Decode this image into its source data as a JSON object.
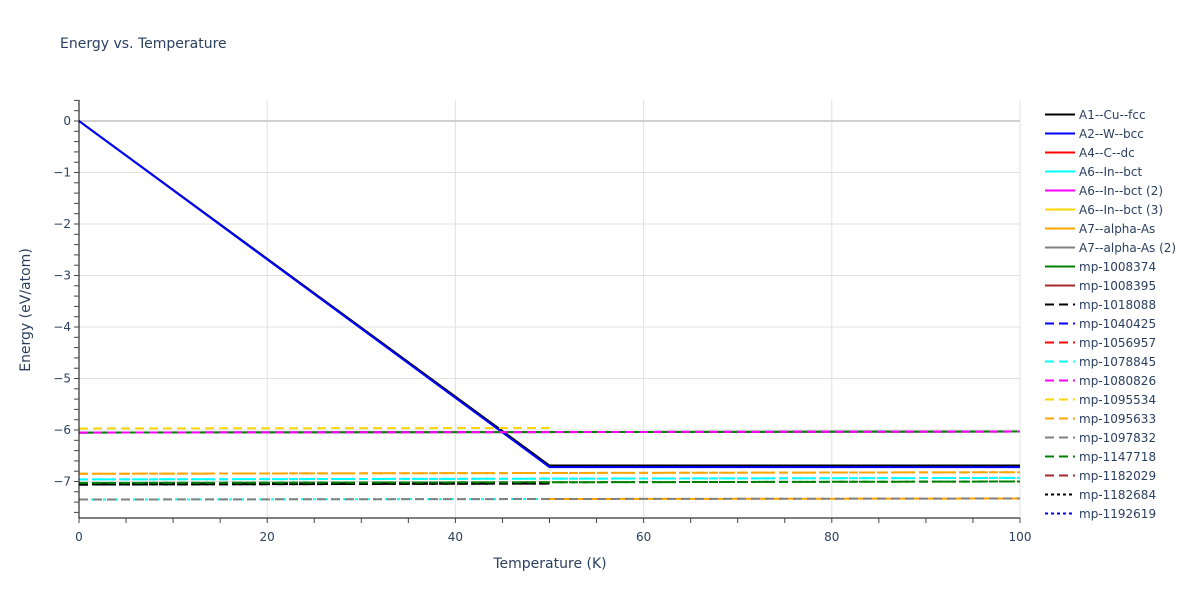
{
  "chart_data": {
    "type": "line",
    "title": "Energy vs. Temperature",
    "xlabel": "Temperature (K)",
    "ylabel": "Energy (eV/atom)",
    "xlim": [
      0,
      100
    ],
    "ylim": [
      -7.8,
      0.4
    ],
    "xticks": [
      0,
      20,
      40,
      60,
      80,
      100
    ],
    "yticks": [
      0,
      -1,
      -2,
      -3,
      -4,
      -5,
      -6,
      -7
    ],
    "ytick_labels": [
      "0",
      "−1",
      "−2",
      "−3",
      "−4",
      "−5",
      "−6",
      "−7"
    ],
    "grid": true,
    "legend_position": "right",
    "series": [
      {
        "name": "A1--Cu--fcc",
        "color": "#000000",
        "dash": "solid",
        "x": [
          0,
          50,
          100
        ],
        "y": [
          0,
          -6.69,
          -6.69
        ]
      },
      {
        "name": "A2--W--bcc",
        "color": "#0000ff",
        "dash": "solid",
        "x": [
          0,
          50,
          100
        ],
        "y": [
          0,
          -6.72,
          -6.72
        ]
      },
      {
        "name": "A4--C--dc",
        "color": "#ff0000",
        "dash": "solid",
        "x": [],
        "y": []
      },
      {
        "name": "A6--In--bct",
        "color": "#00ffff",
        "dash": "solid",
        "x": [],
        "y": []
      },
      {
        "name": "A6--In--bct (2)",
        "color": "#ff00ff",
        "dash": "solid",
        "x": [
          0,
          100
        ],
        "y": [
          -6.05,
          -6.03
        ]
      },
      {
        "name": "A6--In--bct (3)",
        "color": "#ffd700",
        "dash": "solid",
        "x": [],
        "y": []
      },
      {
        "name": "A7--alpha-As",
        "color": "#ffa500",
        "dash": "solid",
        "x": [],
        "y": []
      },
      {
        "name": "A7--alpha-As (2)",
        "color": "#808080",
        "dash": "solid",
        "x": [],
        "y": []
      },
      {
        "name": "mp-1008374",
        "color": "#008000",
        "dash": "solid",
        "x": [
          0,
          100
        ],
        "y": [
          -6.05,
          -6.03
        ]
      },
      {
        "name": "mp-1008395",
        "color": "#a52a2a",
        "dash": "solid",
        "x": [],
        "y": []
      },
      {
        "name": "mp-1018088",
        "color": "#000000",
        "dash": "dash",
        "x": [
          0,
          50
        ],
        "y": [
          -7.06,
          -7.04
        ]
      },
      {
        "name": "mp-1040425",
        "color": "#0000ff",
        "dash": "dash",
        "x": [],
        "y": []
      },
      {
        "name": "mp-1056957",
        "color": "#ff0000",
        "dash": "dash",
        "x": [],
        "y": []
      },
      {
        "name": "mp-1078845",
        "color": "#00ffff",
        "dash": "dash",
        "x": [
          0,
          100
        ],
        "y": [
          -6.96,
          -6.93
        ]
      },
      {
        "name": "mp-1080826",
        "color": "#ff00ff",
        "dash": "dash",
        "x": [
          0,
          100
        ],
        "y": [
          -6.05,
          -6.03
        ]
      },
      {
        "name": "mp-1095534",
        "color": "#ffd700",
        "dash": "dash",
        "x": [
          0,
          50
        ],
        "y": [
          -5.97,
          -5.96
        ]
      },
      {
        "name": "mp-1095633",
        "color": "#ffa500",
        "dash": "dash",
        "x": [
          0,
          100
        ],
        "y": [
          -6.85,
          -6.82
        ]
      },
      {
        "name": "mp-1097832",
        "color": "#808080",
        "dash": "dash",
        "x": [
          0,
          100
        ],
        "y": [
          -7.35,
          -7.33
        ]
      },
      {
        "name": "mp-1147718",
        "color": "#008000",
        "dash": "dash",
        "x": [
          0,
          100
        ],
        "y": [
          -7.03,
          -7.0
        ]
      },
      {
        "name": "mp-1182029",
        "color": "#a52a2a",
        "dash": "dash",
        "x": [],
        "y": []
      },
      {
        "name": "mp-1182684",
        "color": "#000000",
        "dash": "dot",
        "x": [],
        "y": []
      },
      {
        "name": "mp-1192619",
        "color": "#0000ff",
        "dash": "dot",
        "x": [],
        "y": []
      }
    ]
  },
  "legend": {
    "items": [
      {
        "label": "A1--Cu--fcc",
        "color": "#000000",
        "dash": "solid"
      },
      {
        "label": "A2--W--bcc",
        "color": "#0000ff",
        "dash": "solid"
      },
      {
        "label": "A4--C--dc",
        "color": "#ff0000",
        "dash": "solid"
      },
      {
        "label": "A6--In--bct",
        "color": "#00ffff",
        "dash": "solid"
      },
      {
        "label": "A6--In--bct (2)",
        "color": "#ff00ff",
        "dash": "solid"
      },
      {
        "label": "A6--In--bct (3)",
        "color": "#ffd700",
        "dash": "solid"
      },
      {
        "label": "A7--alpha-As",
        "color": "#ffa500",
        "dash": "solid"
      },
      {
        "label": "A7--alpha-As (2)",
        "color": "#808080",
        "dash": "solid"
      },
      {
        "label": "mp-1008374",
        "color": "#008000",
        "dash": "solid"
      },
      {
        "label": "mp-1008395",
        "color": "#a52a2a",
        "dash": "solid"
      },
      {
        "label": "mp-1018088",
        "color": "#000000",
        "dash": "dash"
      },
      {
        "label": "mp-1040425",
        "color": "#0000ff",
        "dash": "dash"
      },
      {
        "label": "mp-1056957",
        "color": "#ff0000",
        "dash": "dash"
      },
      {
        "label": "mp-1078845",
        "color": "#00ffff",
        "dash": "dash"
      },
      {
        "label": "mp-1080826",
        "color": "#ff00ff",
        "dash": "dash"
      },
      {
        "label": "mp-1095534",
        "color": "#ffd700",
        "dash": "dash"
      },
      {
        "label": "mp-1095633",
        "color": "#ffa500",
        "dash": "dash"
      },
      {
        "label": "mp-1097832",
        "color": "#808080",
        "dash": "dash"
      },
      {
        "label": "mp-1147718",
        "color": "#008000",
        "dash": "dash"
      },
      {
        "label": "mp-1182029",
        "color": "#a52a2a",
        "dash": "dash"
      },
      {
        "label": "mp-1182684",
        "color": "#000000",
        "dash": "dot"
      },
      {
        "label": "mp-1192619",
        "color": "#0000ff",
        "dash": "dot"
      }
    ]
  },
  "extra_lines": [
    {
      "color": "#ffa500",
      "dash": "dashdot",
      "x": [
        0,
        100
      ],
      "y": [
        -6.85,
        -6.82
      ]
    },
    {
      "color": "#00ffff",
      "dash": "dashdot",
      "x": [
        0,
        100
      ],
      "y": [
        -6.96,
        -6.93
      ]
    },
    {
      "color": "#008000",
      "dash": "dashdot",
      "x": [
        0,
        100
      ],
      "y": [
        -7.03,
        -7.0
      ]
    },
    {
      "color": "#000000",
      "dash": "dashdot",
      "x": [
        0,
        50
      ],
      "y": [
        -7.06,
        -7.04
      ]
    },
    {
      "color": "#00ffff",
      "dash": "dot",
      "x": [
        0,
        50
      ],
      "y": [
        -7.35,
        -7.34
      ]
    },
    {
      "color": "#ffa500",
      "dash": "dash",
      "x": [
        50,
        100
      ],
      "y": [
        -7.34,
        -7.33
      ]
    },
    {
      "color": "#008000",
      "dash": "dash",
      "x": [
        0,
        100
      ],
      "y": [
        -6.05,
        -6.03
      ]
    }
  ]
}
